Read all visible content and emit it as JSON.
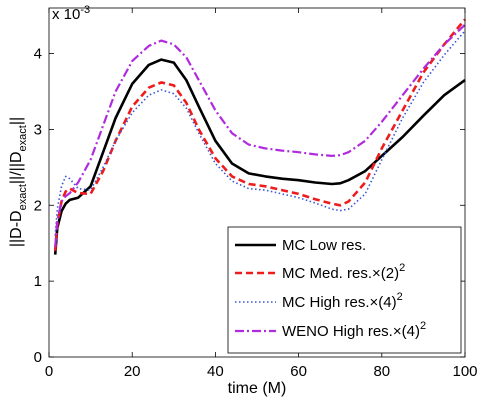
{
  "chart_data": {
    "type": "line",
    "xlabel": "time (M)",
    "ylabel_main": "||D-D",
    "ylabel_sub1": "exact",
    "ylabel_mid": "||/||D",
    "ylabel_sub2": "exact",
    "ylabel_end": "||",
    "exponent_label": "x 10",
    "exponent_power": "-3",
    "xlim": [
      0,
      100
    ],
    "ylim": [
      0,
      4.6
    ],
    "xticks": [
      "0",
      "20",
      "40",
      "60",
      "80",
      "100"
    ],
    "xtick_values": [
      0,
      20,
      40,
      60,
      80,
      100
    ],
    "yticks": [
      "0",
      "1",
      "2",
      "3",
      "4"
    ],
    "ytick_values": [
      0,
      1,
      2,
      3,
      4
    ],
    "legend_position": "bottom-right",
    "series": [
      {
        "name": "MC Low res.",
        "legend_main": "MC Low res.",
        "legend_sup": "",
        "color": "#000000",
        "dash": "",
        "width": 2.6,
        "x": [
          1.5,
          2,
          3,
          4,
          5,
          7,
          10,
          13,
          16,
          20,
          24,
          27,
          30,
          33,
          36,
          40,
          44,
          48,
          52,
          56,
          60,
          64,
          68,
          70,
          72,
          76,
          80,
          85,
          90,
          95,
          100
        ],
        "y": [
          1.35,
          1.7,
          1.92,
          2.02,
          2.07,
          2.1,
          2.25,
          2.7,
          3.15,
          3.6,
          3.85,
          3.92,
          3.88,
          3.65,
          3.3,
          2.85,
          2.55,
          2.42,
          2.38,
          2.35,
          2.33,
          2.3,
          2.28,
          2.29,
          2.33,
          2.45,
          2.65,
          2.9,
          3.18,
          3.45,
          3.65
        ]
      },
      {
        "name": "MC Med. res.",
        "legend_main": "MC Med. res.×(2)",
        "legend_sup": "2",
        "color": "#ee1c1c",
        "dash": "7 4",
        "width": 2.6,
        "x": [
          1.5,
          2,
          3,
          4,
          5,
          7,
          10,
          13,
          16,
          20,
          24,
          27,
          30,
          33,
          36,
          40,
          44,
          48,
          52,
          56,
          60,
          64,
          68,
          70,
          72,
          76,
          80,
          85,
          90,
          95,
          100
        ],
        "y": [
          1.4,
          1.75,
          2.05,
          2.18,
          2.22,
          2.16,
          2.15,
          2.45,
          2.85,
          3.3,
          3.55,
          3.62,
          3.58,
          3.35,
          3.0,
          2.62,
          2.38,
          2.28,
          2.25,
          2.2,
          2.15,
          2.08,
          2.02,
          2.0,
          2.05,
          2.3,
          2.75,
          3.25,
          3.75,
          4.12,
          4.45
        ]
      },
      {
        "name": "MC High res.",
        "legend_main": "MC High res.×(4)",
        "legend_sup": "2",
        "color": "#3a56d4",
        "dash": "1.5 2.5",
        "width": 1.6,
        "x": [
          1.5,
          2,
          3,
          4,
          5,
          7,
          10,
          13,
          16,
          20,
          24,
          27,
          30,
          33,
          36,
          40,
          44,
          48,
          52,
          56,
          60,
          64,
          68,
          70,
          72,
          76,
          80,
          85,
          90,
          95,
          100
        ],
        "y": [
          1.6,
          1.95,
          2.25,
          2.38,
          2.35,
          2.22,
          2.2,
          2.5,
          2.85,
          3.22,
          3.45,
          3.52,
          3.47,
          3.28,
          2.95,
          2.55,
          2.32,
          2.22,
          2.2,
          2.15,
          2.1,
          2.03,
          1.95,
          1.93,
          1.95,
          2.15,
          2.6,
          3.15,
          3.62,
          3.98,
          4.3
        ]
      },
      {
        "name": "WENO High res.",
        "legend_main": "WENO High res.×(4)",
        "legend_sup": "2",
        "color": "#b02bde",
        "dash": "9 3 2 3",
        "width": 2.2,
        "x": [
          1.5,
          2,
          3,
          4,
          5,
          7,
          10,
          13,
          16,
          20,
          24,
          27,
          30,
          33,
          36,
          40,
          44,
          48,
          52,
          56,
          60,
          64,
          68,
          70,
          72,
          76,
          80,
          85,
          90,
          95,
          100
        ],
        "y": [
          1.45,
          1.8,
          2.05,
          2.12,
          2.16,
          2.3,
          2.6,
          3.05,
          3.5,
          3.9,
          4.1,
          4.17,
          4.12,
          3.95,
          3.65,
          3.25,
          2.95,
          2.8,
          2.75,
          2.72,
          2.7,
          2.67,
          2.65,
          2.66,
          2.7,
          2.85,
          3.1,
          3.45,
          3.8,
          4.12,
          4.38
        ]
      }
    ]
  }
}
